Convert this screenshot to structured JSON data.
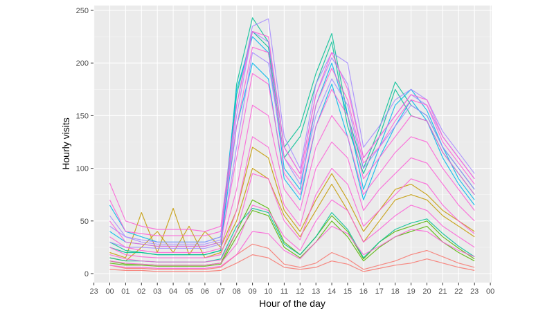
{
  "chart_data": {
    "type": "line",
    "title": "",
    "xlabel": "Hour of the day",
    "ylabel": "Hourly visits",
    "x_ticks": [
      "23",
      "00",
      "01",
      "02",
      "03",
      "04",
      "05",
      "06",
      "07",
      "08",
      "09",
      "10",
      "11",
      "12",
      "13",
      "14",
      "15",
      "16",
      "17",
      "18",
      "19",
      "20",
      "21",
      "22",
      "23",
      "00"
    ],
    "x_data_hours": [
      "00",
      "01",
      "02",
      "03",
      "04",
      "05",
      "06",
      "07",
      "08",
      "09",
      "10",
      "11",
      "12",
      "13",
      "14",
      "15",
      "16",
      "17",
      "18",
      "19",
      "20",
      "21",
      "22",
      "23"
    ],
    "y_ticks": [
      0,
      50,
      100,
      150,
      200,
      250
    ],
    "ylim": [
      0,
      250
    ],
    "grid": true,
    "legend": "none",
    "background": "#EBEBEB",
    "series_palette": [
      "#F8766D",
      "#C49A00",
      "#53B400",
      "#00C094",
      "#00B6EB",
      "#A58AFF",
      "#FB61D7"
    ],
    "series": [
      {
        "color": "#F8766D",
        "values": [
          8,
          5,
          5,
          4,
          4,
          4,
          4,
          6,
          18,
          28,
          24,
          9,
          6,
          10,
          20,
          14,
          4,
          8,
          12,
          18,
          22,
          16,
          10,
          6
        ]
      },
      {
        "color": "#F8766D",
        "values": [
          4,
          3,
          3,
          2,
          2,
          2,
          2,
          3,
          10,
          18,
          15,
          6,
          4,
          6,
          12,
          9,
          2,
          5,
          8,
          10,
          14,
          10,
          6,
          3
        ]
      },
      {
        "color": "#C49A00",
        "values": [
          20,
          15,
          58,
          20,
          62,
          18,
          40,
          25,
          60,
          120,
          110,
          60,
          40,
          70,
          95,
          70,
          40,
          60,
          80,
          85,
          75,
          60,
          50,
          40
        ]
      },
      {
        "color": "#C49A00",
        "values": [
          15,
          12,
          25,
          40,
          20,
          45,
          15,
          20,
          50,
          100,
          90,
          55,
          35,
          60,
          85,
          60,
          30,
          50,
          70,
          75,
          70,
          55,
          45,
          35
        ]
      },
      {
        "color": "#53B400",
        "values": [
          10,
          8,
          8,
          7,
          7,
          7,
          7,
          9,
          35,
          60,
          55,
          25,
          15,
          30,
          50,
          35,
          12,
          25,
          35,
          40,
          45,
          30,
          20,
          12
        ]
      },
      {
        "color": "#53B400",
        "values": [
          12,
          9,
          9,
          8,
          8,
          8,
          8,
          10,
          40,
          70,
          62,
          30,
          18,
          35,
          55,
          40,
          14,
          30,
          40,
          45,
          50,
          35,
          24,
          14
        ]
      },
      {
        "color": "#00C094",
        "values": [
          25,
          20,
          20,
          18,
          18,
          18,
          18,
          22,
          180,
          243,
          220,
          120,
          140,
          190,
          228,
          150,
          100,
          138,
          182,
          160,
          150,
          120,
          100,
          80
        ]
      },
      {
        "color": "#00C094",
        "values": [
          30,
          22,
          20,
          18,
          18,
          18,
          18,
          22,
          170,
          230,
          215,
          110,
          130,
          180,
          220,
          140,
          95,
          130,
          175,
          150,
          145,
          115,
          95,
          75
        ]
      },
      {
        "color": "#00C094",
        "values": [
          15,
          12,
          12,
          11,
          11,
          11,
          11,
          14,
          45,
          62,
          58,
          28,
          18,
          35,
          58,
          42,
          15,
          30,
          42,
          48,
          52,
          38,
          26,
          16
        ]
      },
      {
        "color": "#00B6EB",
        "values": [
          65,
          40,
          35,
          30,
          30,
          30,
          30,
          35,
          175,
          225,
          210,
          100,
          80,
          160,
          200,
          150,
          80,
          120,
          160,
          175,
          155,
          120,
          90,
          70
        ]
      },
      {
        "color": "#00B6EB",
        "values": [
          40,
          30,
          28,
          26,
          26,
          26,
          26,
          30,
          140,
          200,
          185,
          90,
          70,
          140,
          180,
          130,
          70,
          110,
          140,
          165,
          145,
          110,
          85,
          65
        ]
      },
      {
        "color": "#A58AFF",
        "values": [
          45,
          35,
          32,
          30,
          30,
          30,
          30,
          35,
          150,
          230,
          220,
          120,
          95,
          170,
          205,
          180,
          110,
          130,
          150,
          170,
          160,
          130,
          110,
          90
        ]
      },
      {
        "color": "#A58AFF",
        "values": [
          30,
          25,
          25,
          24,
          24,
          24,
          24,
          28,
          120,
          210,
          200,
          110,
          85,
          150,
          185,
          160,
          100,
          120,
          140,
          160,
          150,
          120,
          100,
          80
        ]
      },
      {
        "color": "#A58AFF",
        "values": [
          55,
          35,
          30,
          28,
          28,
          28,
          28,
          32,
          160,
          235,
          242,
          130,
          100,
          180,
          210,
          200,
          120,
          140,
          165,
          175,
          165,
          135,
          115,
          95
        ]
      },
      {
        "color": "#FB61D7",
        "values": [
          86,
          50,
          45,
          42,
          42,
          42,
          40,
          45,
          160,
          230,
          225,
          120,
          95,
          170,
          210,
          175,
          110,
          130,
          150,
          170,
          165,
          130,
          110,
          90
        ]
      },
      {
        "color": "#FB61D7",
        "values": [
          70,
          40,
          38,
          36,
          36,
          36,
          36,
          40,
          140,
          215,
          210,
          110,
          90,
          160,
          195,
          165,
          105,
          120,
          145,
          165,
          160,
          125,
          105,
          85
        ]
      },
      {
        "color": "#FB61D7",
        "values": [
          50,
          30,
          28,
          26,
          26,
          26,
          26,
          30,
          110,
          190,
          180,
          95,
          75,
          140,
          175,
          150,
          90,
          110,
          130,
          150,
          145,
          115,
          95,
          75
        ]
      },
      {
        "color": "#FB61D7",
        "values": [
          35,
          25,
          22,
          20,
          20,
          20,
          20,
          24,
          80,
          160,
          150,
          80,
          60,
          120,
          150,
          130,
          75,
          95,
          115,
          130,
          125,
          100,
          80,
          60
        ]
      },
      {
        "color": "#FB61D7",
        "values": [
          25,
          18,
          16,
          15,
          15,
          15,
          15,
          18,
          60,
          130,
          120,
          65,
          45,
          100,
          125,
          110,
          60,
          80,
          95,
          110,
          105,
          85,
          65,
          50
        ]
      },
      {
        "color": "#FB61D7",
        "values": [
          18,
          14,
          12,
          11,
          11,
          11,
          11,
          13,
          40,
          95,
          90,
          50,
          32,
          75,
          100,
          85,
          45,
          60,
          75,
          90,
          85,
          65,
          50,
          38
        ]
      },
      {
        "color": "#FB61D7",
        "values": [
          12,
          10,
          9,
          8,
          8,
          8,
          8,
          10,
          28,
          65,
          60,
          35,
          22,
          50,
          70,
          60,
          30,
          42,
          55,
          65,
          60,
          45,
          35,
          25
        ]
      },
      {
        "color": "#FB61D7",
        "values": [
          8,
          6,
          6,
          5,
          5,
          5,
          5,
          7,
          18,
          40,
          38,
          22,
          14,
          30,
          45,
          38,
          18,
          26,
          35,
          42,
          40,
          30,
          22,
          16
        ]
      }
    ]
  }
}
